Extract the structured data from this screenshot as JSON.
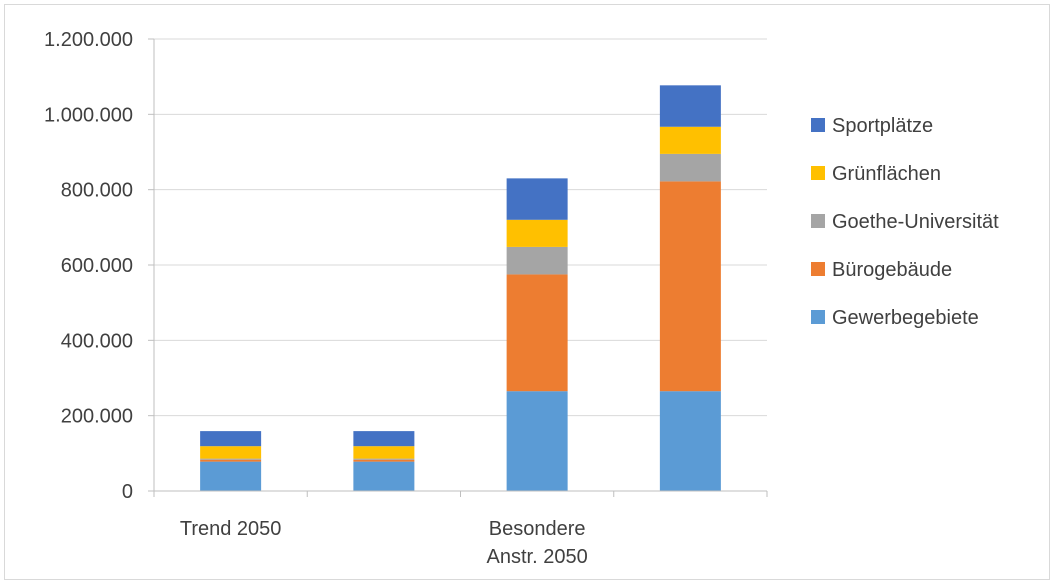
{
  "chart_data": {
    "type": "bar",
    "stacked": true,
    "categories": [
      "Trend 2050",
      "",
      "Besondere Anstr. 2050",
      ""
    ],
    "series": [
      {
        "name": "Gewerbegebiete",
        "color": "#5B9BD5",
        "values": [
          78000,
          78000,
          265000,
          265000
        ]
      },
      {
        "name": "Bürogebäude",
        "color": "#ED7D31",
        "values": [
          5000,
          5000,
          310000,
          557000
        ]
      },
      {
        "name": "Goethe-Universität",
        "color": "#A5A5A5",
        "values": [
          3000,
          3000,
          73000,
          73000
        ]
      },
      {
        "name": "Grünflächen",
        "color": "#FFC000",
        "values": [
          33000,
          33000,
          72000,
          72000
        ]
      },
      {
        "name": "Sportplätze",
        "color": "#4472C4",
        "values": [
          40000,
          40000,
          110000,
          110000
        ]
      }
    ],
    "y_ticks": [
      "0",
      "200.000",
      "400.000",
      "600.000",
      "800.000",
      "1.000.000",
      "1.200.000"
    ],
    "ylim": [
      0,
      1200000
    ],
    "grid": true,
    "legend_position": "right",
    "legend_order": [
      "Sportplätze",
      "Grünflächen",
      "Goethe-Universität",
      "Bürogebäude",
      "Gewerbegebiete"
    ]
  }
}
